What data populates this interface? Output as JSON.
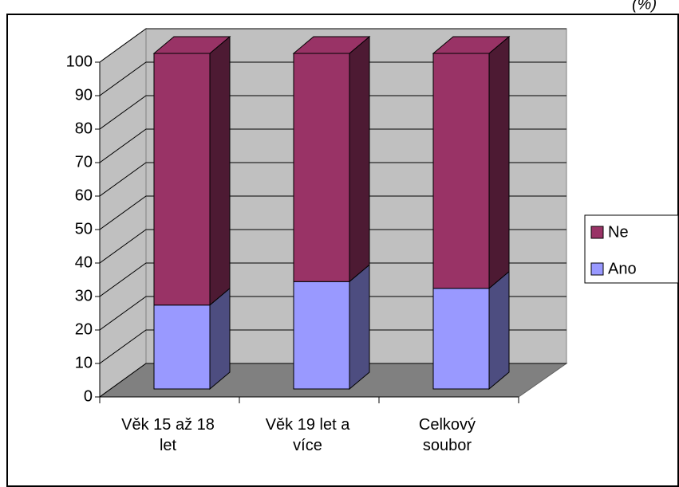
{
  "chart_data": {
    "type": "bar3d_stacked",
    "title": "(%)",
    "categories": [
      "Věk 15 až 18 let",
      "Věk 19 let a více",
      "Celkový soubor"
    ],
    "series": [
      {
        "name": "Ano",
        "color": "#9999ff",
        "values": [
          25,
          32,
          30
        ]
      },
      {
        "name": "Ne",
        "color": "#993366",
        "values": [
          75,
          68,
          70
        ]
      }
    ],
    "ylim": [
      0,
      100
    ],
    "yticks": [
      0,
      10,
      20,
      30,
      40,
      50,
      60,
      70,
      80,
      90,
      100
    ],
    "grid": true,
    "legend": "right"
  }
}
